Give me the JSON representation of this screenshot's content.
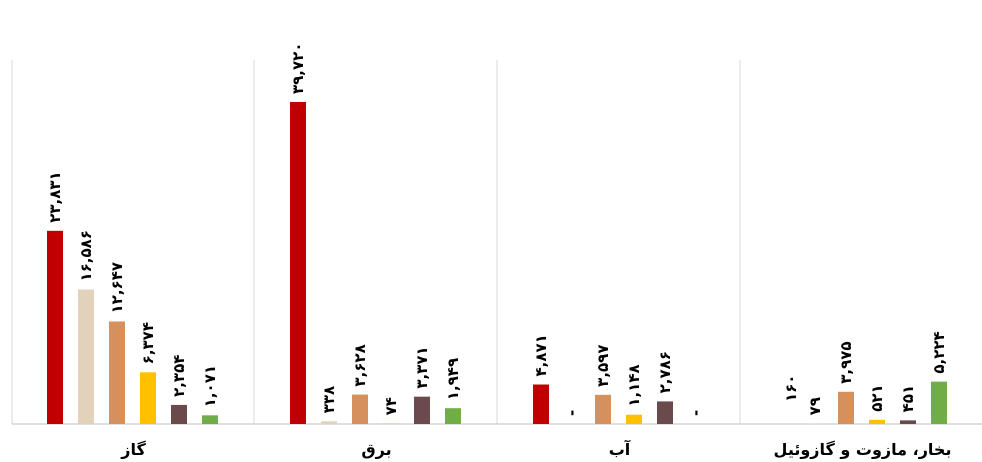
{
  "chart_data": {
    "type": "bar",
    "categories": [
      "گاز",
      "برق",
      "آب",
      "بخار، مازوت و گازوئیل"
    ],
    "series": [
      {
        "color": "#C00000",
        "values": [
          23831,
          39720,
          4871,
          0
        ],
        "labels": [
          "۲۳,۸۳۱",
          "۳۹,۷۲۰",
          "۴,۸۷۱",
          ""
        ]
      },
      {
        "color": "#E2D2BC",
        "values": [
          16586,
          338,
          0,
          79
        ],
        "labels": [
          "۱۶,۵۸۶",
          "۳۳۸",
          "-",
          "۷۹"
        ]
      },
      {
        "color": "#D6905E",
        "values": [
          12647,
          3628,
          3597,
          3975
        ],
        "labels": [
          "۱۲,۶۴۷",
          "۳,۶۲۸",
          "۳,۵۹۷",
          "۳,۹۷۵"
        ]
      },
      {
        "color": "#FFC000",
        "values": [
          6374,
          74,
          1148,
          521
        ],
        "labels": [
          "۶,۳۷۴",
          "۷۴",
          "۱,۱۴۸",
          "۵۲۱"
        ]
      },
      {
        "color": "#6B4A4E",
        "values": [
          2354,
          3371,
          2786,
          451
        ],
        "labels": [
          "۲,۳۵۴",
          "۳,۳۷۱",
          "۲,۷۸۶",
          "۴۵۱"
        ]
      },
      {
        "color": "#70AD47",
        "values": [
          1071,
          1949,
          0,
          5224
        ],
        "labels": [
          "۱,۰۷۱",
          "۱,۹۴۹",
          "-",
          "۵,۲۲۴"
        ]
      }
    ],
    "extra_labels": [
      {
        "category_index": 3,
        "text": "۱۶۰"
      }
    ],
    "ylim": [
      0,
      39720
    ],
    "grid": false,
    "legend": "none"
  }
}
